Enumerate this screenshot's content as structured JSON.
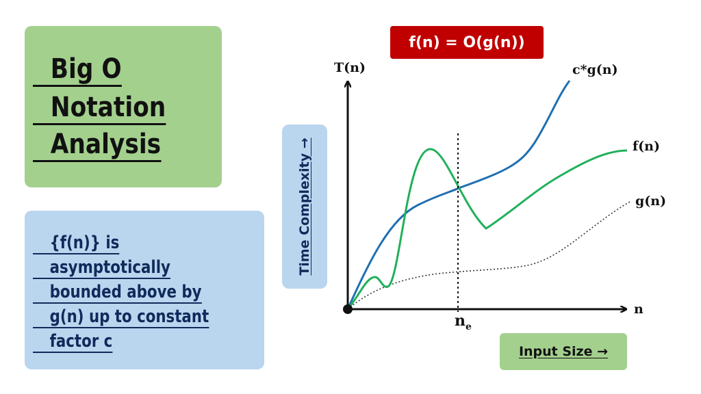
{
  "title": {
    "lines": [
      "Big O",
      "Notation",
      "Analysis"
    ]
  },
  "description": {
    "lines": [
      "{f(n)} is",
      "asymptotically",
      "bounded above by",
      "g(n) up to constant",
      "factor c"
    ]
  },
  "formula": "f(n) = O(g(n))",
  "axes": {
    "y_axis_label": "T(n)",
    "x_axis_label": "n",
    "y_panel_label": "Time Complexity →",
    "x_panel_label": "Input Size →",
    "threshold_label_main": "n",
    "threshold_label_sub": "e"
  },
  "curves": {
    "upper_bound_label": "c*g(n)",
    "function_label": "f(n)",
    "bound_label": "g(n)"
  },
  "colors": {
    "title_panel": "#a4d08e",
    "desc_panel": "#bad5ee",
    "formula_box": "#c00000",
    "upper_bound_curve": "#1f6fb2",
    "function_curve": "#1fb05a",
    "bound_curve": "#333333"
  }
}
